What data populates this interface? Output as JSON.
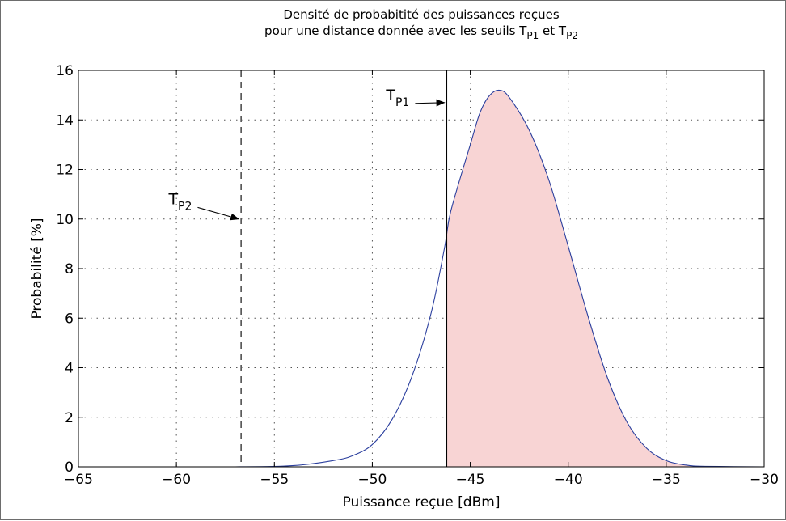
{
  "chart_data": {
    "type": "area",
    "title_line1": "Densité de probabitité des puissances reçues",
    "title_line2_prefix": "pour une distance donnée avec les seuils T",
    "title_line2_sub1": "P1",
    "title_line2_mid": " et T",
    "title_line2_sub2": "P2",
    "xlabel": "Puissance reçue [dBm]",
    "ylabel": "Probabilité [%]",
    "xlim": [
      -65,
      -30
    ],
    "ylim": [
      0,
      16
    ],
    "xticks": [
      -65,
      -60,
      -55,
      -50,
      -45,
      -40,
      -35,
      -30
    ],
    "xtick_labels": [
      "−65",
      "−60",
      "−55",
      "−50",
      "−45",
      "−40",
      "−35",
      "−30"
    ],
    "yticks": [
      0,
      2,
      4,
      6,
      8,
      10,
      12,
      14,
      16
    ],
    "ytick_labels": [
      "0",
      "2",
      "4",
      "6",
      "8",
      "10",
      "12",
      "14",
      "16"
    ],
    "grid": true,
    "series": [
      {
        "x": [
          -65,
          -57,
          -54,
          -52,
          -51,
          -50,
          -49,
          -48,
          -47,
          -46.3,
          -46,
          -45,
          -44.5,
          -44,
          -43.5,
          -43,
          -42,
          -41,
          -40,
          -39,
          -38,
          -37,
          -36,
          -35,
          -34,
          -33,
          -30
        ],
        "y": [
          0,
          0,
          0.05,
          0.25,
          0.45,
          0.9,
          1.9,
          3.6,
          6.2,
          8.9,
          10.3,
          13.0,
          14.3,
          15.0,
          15.2,
          14.9,
          13.6,
          11.6,
          8.9,
          6.1,
          3.6,
          1.8,
          0.75,
          0.25,
          0.07,
          0.02,
          0
        ],
        "color": "#2b3f9e"
      }
    ],
    "shaded_region": {
      "from_x": -46.2,
      "color": "#f8d4d4"
    },
    "thresholds": [
      {
        "x": -46.2,
        "style": "solid",
        "label": "T",
        "sub": "P1",
        "label_x": -49.3,
        "label_y": 14.8,
        "arrow_to_y": 14.7
      },
      {
        "x": -56.7,
        "style": "dashed",
        "label": "T",
        "sub": "P2",
        "label_x": -60.4,
        "label_y": 10.6,
        "arrow_to_y": 10.0
      }
    ]
  }
}
